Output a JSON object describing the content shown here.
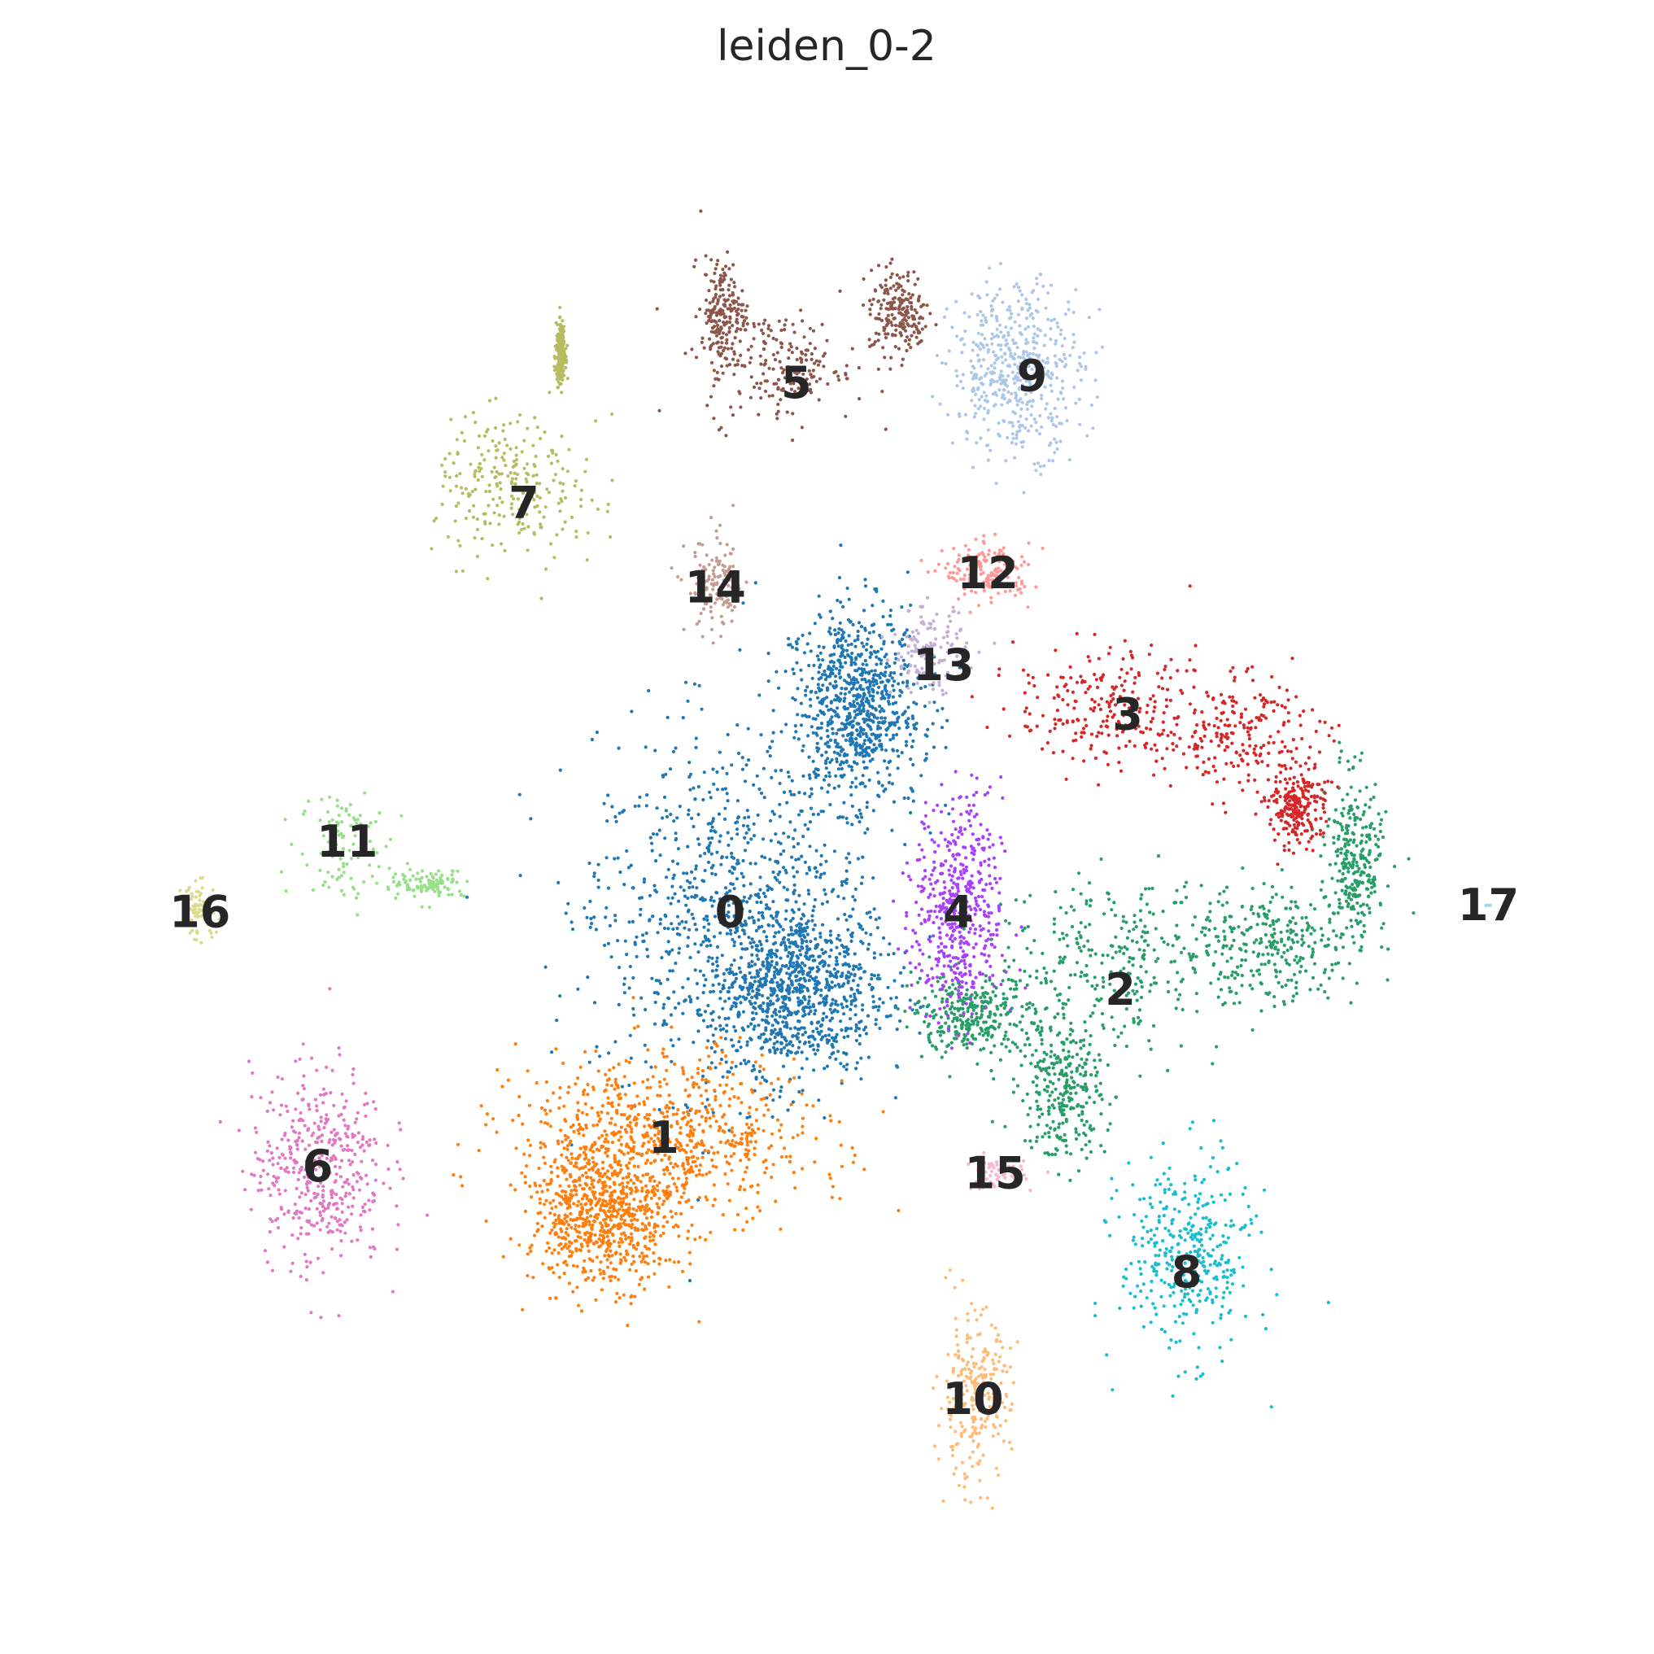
{
  "chart_data": {
    "type": "scatter",
    "title": "leiden_0-2",
    "xlabel": "",
    "ylabel": "",
    "grid": false,
    "axes_visible": false,
    "legend": "on data",
    "xlim": [
      0,
      100
    ],
    "ylim": [
      0,
      100
    ],
    "clusters": [
      {
        "label": "0",
        "color": "#1f77b4",
        "center": [
          43.5,
          45.5
        ],
        "n_points": 2600
      },
      {
        "label": "1",
        "color": "#ff7f0e",
        "center": [
          39.0,
          29.5
        ],
        "n_points": 1500
      },
      {
        "label": "2",
        "color": "#279e68",
        "center": [
          70.0,
          40.0
        ],
        "n_points": 1500
      },
      {
        "label": "3",
        "color": "#d62728",
        "center": [
          70.5,
          59.5
        ],
        "n_points": 700
      },
      {
        "label": "4",
        "color": "#aa40fc",
        "center": [
          59.0,
          45.5
        ],
        "n_points": 500
      },
      {
        "label": "5",
        "color": "#8c564b",
        "center": [
          48.0,
          83.0
        ],
        "n_points": 600
      },
      {
        "label": "6",
        "color": "#e377c2",
        "center": [
          15.5,
          27.5
        ],
        "n_points": 450
      },
      {
        "label": "7",
        "color": "#b5bd61",
        "center": [
          29.5,
          74.5
        ],
        "n_points": 500
      },
      {
        "label": "8",
        "color": "#17becf",
        "center": [
          74.5,
          20.0
        ],
        "n_points": 380
      },
      {
        "label": "9",
        "color": "#aec7e8",
        "center": [
          64.0,
          83.5
        ],
        "n_points": 500
      },
      {
        "label": "10",
        "color": "#ffbb78",
        "center": [
          60.0,
          11.0
        ],
        "n_points": 250
      },
      {
        "label": "11",
        "color": "#98df8a",
        "center": [
          17.5,
          50.5
        ],
        "n_points": 220
      },
      {
        "label": "12",
        "color": "#ff9896",
        "center": [
          61.0,
          69.5
        ],
        "n_points": 160
      },
      {
        "label": "13",
        "color": "#c5b0d5",
        "center": [
          58.0,
          63.0
        ],
        "n_points": 130
      },
      {
        "label": "14",
        "color": "#c49c94",
        "center": [
          42.5,
          68.5
        ],
        "n_points": 130
      },
      {
        "label": "15",
        "color": "#f7b6d2",
        "center": [
          61.5,
          27.0
        ],
        "n_points": 70
      },
      {
        "label": "16",
        "color": "#dbdb8d",
        "center": [
          7.5,
          45.5
        ],
        "n_points": 70
      },
      {
        "label": "17",
        "color": "#9edae5",
        "center": [
          95.0,
          46.0
        ],
        "n_points": 3
      }
    ]
  }
}
